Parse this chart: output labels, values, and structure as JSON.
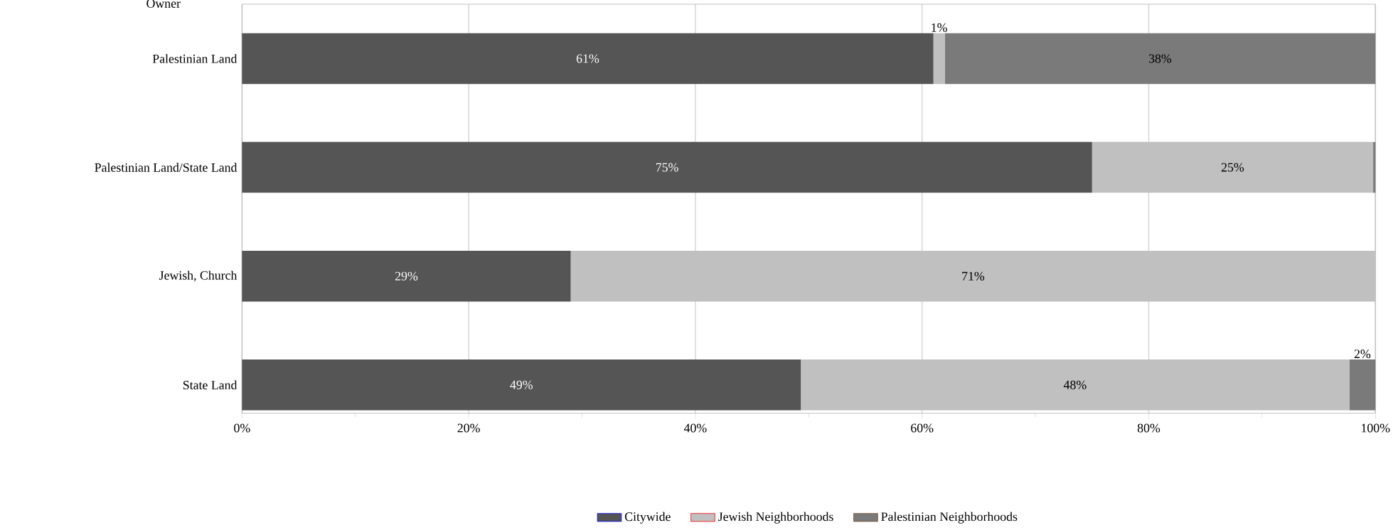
{
  "chart_data": {
    "type": "bar",
    "orientation": "horizontal",
    "stacked": true,
    "ylabel": "Owner",
    "categories": [
      "Palestinian Land",
      "Palestinian Land/State Land",
      "Jewish, Church",
      "State Land"
    ],
    "series": [
      {
        "name": "Citywide",
        "color": "#555555",
        "values": [
          61,
          75,
          29,
          49.3
        ],
        "value_labels": [
          "61%",
          "75%",
          "29%",
          "49%"
        ]
      },
      {
        "name": "Jewish Neighborhoods",
        "color": "#c0c0c0",
        "values": [
          1,
          24.8,
          71,
          48.4
        ],
        "value_labels": [
          "1%",
          "25%",
          "71%",
          "48%"
        ]
      },
      {
        "name": "Palestinian Neighborhoods",
        "color": "#7a7a7a",
        "values": [
          38,
          0.2,
          null,
          2.3
        ],
        "value_labels": [
          "38%",
          null,
          null,
          "2%"
        ]
      }
    ],
    "xlim": [
      0,
      100
    ],
    "xticks": [
      {
        "value": 0,
        "label": "0%"
      },
      {
        "value": 20,
        "label": "20%"
      },
      {
        "value": 40,
        "label": "40%"
      },
      {
        "value": 60,
        "label": "60%"
      },
      {
        "value": 80,
        "label": "80%"
      },
      {
        "value": 100,
        "label": "100%"
      }
    ],
    "grid": "x",
    "legend": "bottom"
  }
}
